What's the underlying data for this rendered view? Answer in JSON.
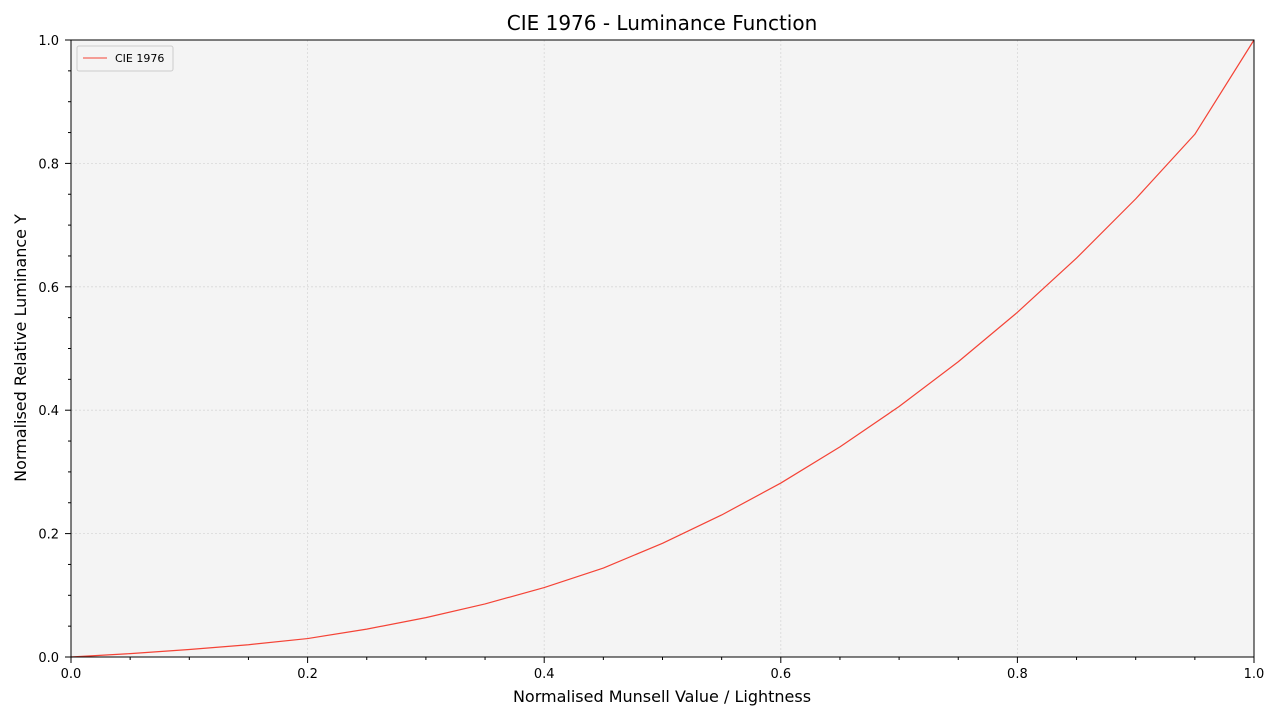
{
  "chart_data": {
    "type": "line",
    "title": "CIE 1976 - Luminance Function",
    "xlabel": "Normalised Munsell Value / Lightness",
    "ylabel": "Normalised Relative Luminance Y",
    "xlim": [
      0.0,
      1.0
    ],
    "ylim": [
      0.0,
      1.0
    ],
    "xticks": [
      "0.0",
      "0.2",
      "0.4",
      "0.6",
      "0.8",
      "1.0"
    ],
    "yticks": [
      "0.0",
      "0.2",
      "0.4",
      "0.6",
      "0.8",
      "1.0"
    ],
    "grid": true,
    "legend_position": "top-left",
    "series": [
      {
        "name": "CIE 1976",
        "color": "#f44336",
        "x": [
          0.0,
          0.05,
          0.1,
          0.15,
          0.2,
          0.25,
          0.3,
          0.35,
          0.4,
          0.45,
          0.5,
          0.55,
          0.6,
          0.65,
          0.7,
          0.75,
          0.8,
          0.85,
          0.9,
          0.95,
          1.0
        ],
        "y": [
          0.0,
          0.0055,
          0.0121,
          0.0199,
          0.0299,
          0.0452,
          0.0638,
          0.086,
          0.1126,
          0.1442,
          0.1842,
          0.2302,
          0.2819,
          0.3405,
          0.406,
          0.4785,
          0.5586,
          0.6465,
          0.7425,
          0.8472,
          1.0
        ]
      }
    ],
    "colors": {
      "plot_background": "#f4f4f4",
      "grid": "#d8d8d8",
      "axis": "#000000"
    }
  }
}
